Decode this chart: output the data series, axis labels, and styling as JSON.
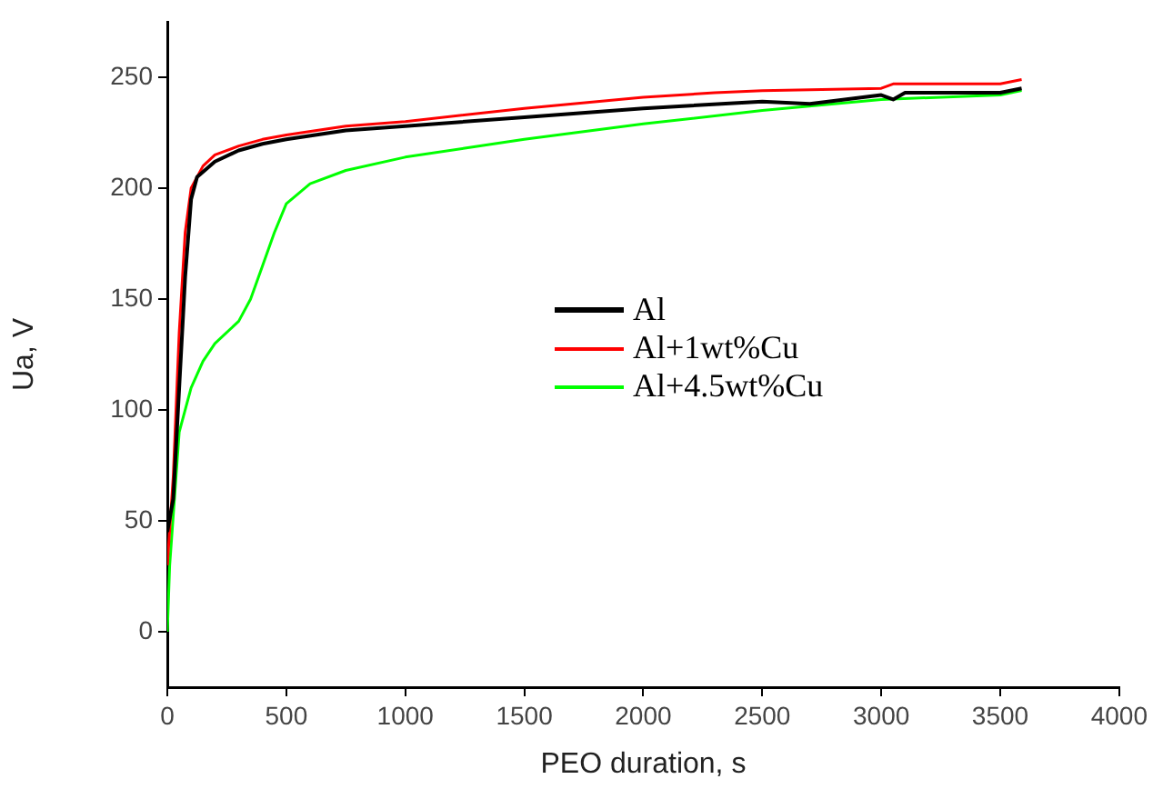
{
  "chart_data": {
    "type": "line",
    "xlabel": "PEO duration, s",
    "ylabel": "Ua, V",
    "xlim": [
      0,
      4000
    ],
    "xticks": [
      0,
      500,
      1000,
      1500,
      2000,
      2500,
      3000,
      3500,
      4000
    ],
    "ylim": [
      -25,
      275
    ],
    "yticks": [
      0,
      50,
      100,
      150,
      200,
      250
    ],
    "grid": false,
    "legend": "right",
    "marker": "none",
    "line_style": "solid",
    "series": [
      {
        "name": "Al",
        "color": "#000000",
        "x": [
          0,
          25,
          50,
          75,
          100,
          125,
          200,
          300,
          400,
          500,
          750,
          1000,
          1500,
          2000,
          2500,
          2700,
          3000,
          3050,
          3100,
          3500,
          3590
        ],
        "values": [
          45,
          60,
          110,
          160,
          195,
          205,
          212,
          217,
          220,
          222,
          226,
          228,
          232,
          236,
          239,
          238,
          242,
          240,
          243,
          243,
          245
        ]
      },
      {
        "name": "Al+1wt%Cu",
        "color": "#ff0000",
        "x": [
          0,
          25,
          50,
          75,
          100,
          150,
          200,
          300,
          400,
          500,
          750,
          1000,
          1500,
          2000,
          2300,
          2500,
          3000,
          3050,
          3500,
          3590
        ],
        "values": [
          30,
          70,
          135,
          180,
          200,
          210,
          215,
          219,
          222,
          224,
          228,
          230,
          236,
          241,
          243,
          244,
          245,
          247,
          247,
          249
        ]
      },
      {
        "name": "Al+4.5wt%Cu",
        "color": "#00ff00",
        "x": [
          0,
          10,
          30,
          50,
          100,
          150,
          200,
          300,
          350,
          400,
          450,
          500,
          600,
          750,
          1000,
          1250,
          1500,
          2000,
          2500,
          3000,
          3500,
          3590
        ],
        "values": [
          0,
          30,
          60,
          90,
          110,
          122,
          130,
          140,
          150,
          165,
          180,
          193,
          202,
          208,
          214,
          218,
          222,
          229,
          235,
          240,
          242,
          244
        ]
      }
    ]
  }
}
